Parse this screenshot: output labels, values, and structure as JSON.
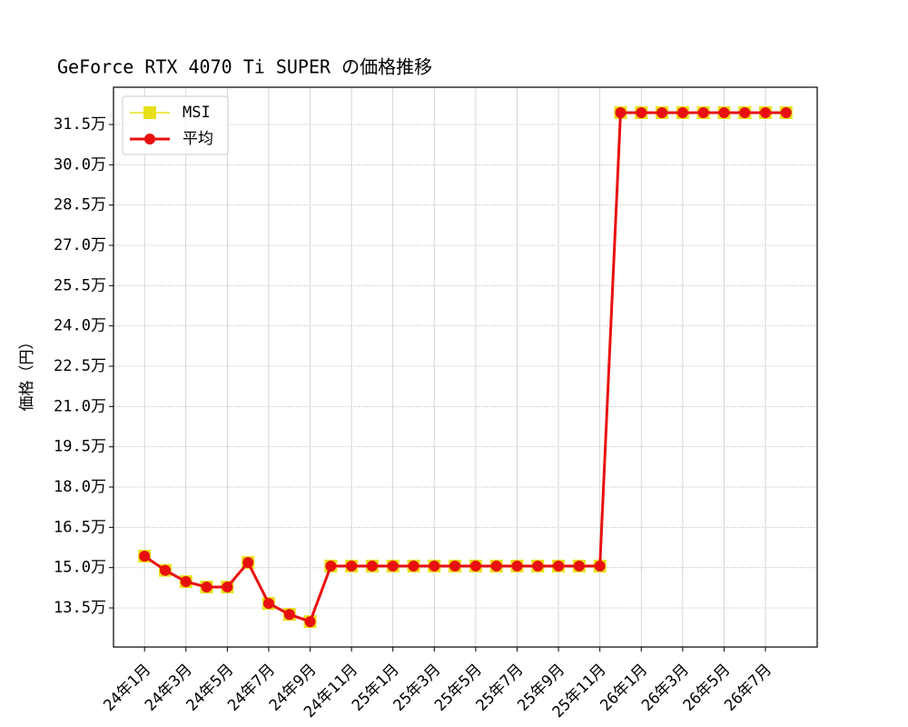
{
  "chart_data": {
    "type": "line",
    "title": "GeForce RTX 4070 Ti SUPER の価格推移",
    "y_label": "価格（円）",
    "categories": [
      "24年1月",
      null,
      "24年3月",
      null,
      "24年5月",
      null,
      "24年7月",
      null,
      "24年9月",
      null,
      "24年11月",
      null,
      "25年1月",
      null,
      "25年3月",
      null,
      "25年5月",
      null,
      "25年7月",
      null,
      "25年9月",
      null,
      "25年11月",
      null,
      "26年1月",
      null,
      "26年3月",
      null,
      "26年5月",
      null,
      "26年7月",
      null
    ],
    "series": [
      {
        "name": "MSI",
        "color": "#e8e01a",
        "marker": "square",
        "values": [
          154300,
          149000,
          144800,
          142800,
          142800,
          151900,
          136700,
          132600,
          129900,
          150600,
          150600,
          150600,
          150600,
          150600,
          150600,
          150600,
          150600,
          150600,
          150600,
          150600,
          150600,
          150600,
          150600,
          319400,
          319400,
          319400,
          319400,
          319400,
          319400,
          319400,
          319400,
          319400
        ]
      },
      {
        "name": "平均",
        "color": "#e8100f",
        "marker": "circle",
        "values": [
          154300,
          149000,
          144800,
          142800,
          142800,
          151900,
          136700,
          132600,
          129900,
          150600,
          150600,
          150600,
          150600,
          150600,
          150600,
          150600,
          150600,
          150600,
          150600,
          150600,
          150600,
          150600,
          150600,
          319400,
          319400,
          319400,
          319400,
          319400,
          319400,
          319400,
          319400,
          319400
        ]
      }
    ],
    "ylim": [
      120450,
      328870
    ],
    "yticks": [
      {
        "value": 135000,
        "label": "13.5万"
      },
      {
        "value": 150000,
        "label": "15.0万"
      },
      {
        "value": 165000,
        "label": "16.5万"
      },
      {
        "value": 180000,
        "label": "18.0万"
      },
      {
        "value": 195000,
        "label": "19.5万"
      },
      {
        "value": 210000,
        "label": "21.0万"
      },
      {
        "value": 225000,
        "label": "22.5万"
      },
      {
        "value": 240000,
        "label": "24.0万"
      },
      {
        "value": 255000,
        "label": "25.5万"
      },
      {
        "value": 270000,
        "label": "27.0万"
      },
      {
        "value": 285000,
        "label": "28.5万"
      },
      {
        "value": 300000,
        "label": "30.0万"
      },
      {
        "value": 315000,
        "label": "31.5万"
      }
    ],
    "grid": true,
    "legend": "upper left"
  }
}
